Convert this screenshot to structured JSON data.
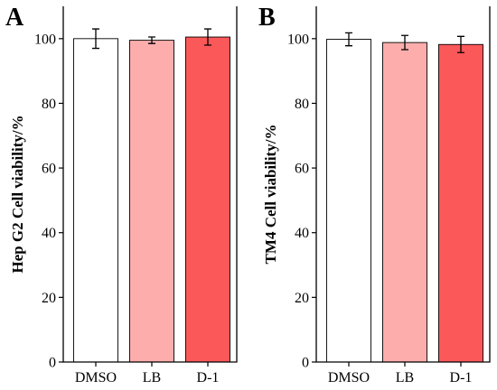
{
  "chart_data": [
    {
      "type": "bar",
      "panel_label": "A",
      "ylabel": "Hep G2 Cell viability/%",
      "xlabel": "",
      "title": "",
      "categories": [
        "DMSO",
        "LB",
        "D-1"
      ],
      "values": [
        100,
        99.5,
        100.5
      ],
      "errors": [
        3.0,
        1.0,
        2.5
      ],
      "colors": [
        "#ffffff",
        "#fdaeac",
        "#fb585a"
      ],
      "ylim": [
        0,
        110
      ],
      "yticks": [
        0,
        20,
        40,
        60,
        80,
        100
      ]
    },
    {
      "type": "bar",
      "panel_label": "B",
      "ylabel": "TM4 Cell viability/%",
      "xlabel": "",
      "title": "",
      "categories": [
        "DMSO",
        "LB",
        "D-1"
      ],
      "values": [
        99.8,
        98.8,
        98.2
      ],
      "errors": [
        2.0,
        2.2,
        2.5
      ],
      "colors": [
        "#ffffff",
        "#fdaeac",
        "#fb585a"
      ],
      "ylim": [
        0,
        110
      ],
      "yticks": [
        0,
        20,
        40,
        60,
        80,
        100
      ]
    }
  ]
}
